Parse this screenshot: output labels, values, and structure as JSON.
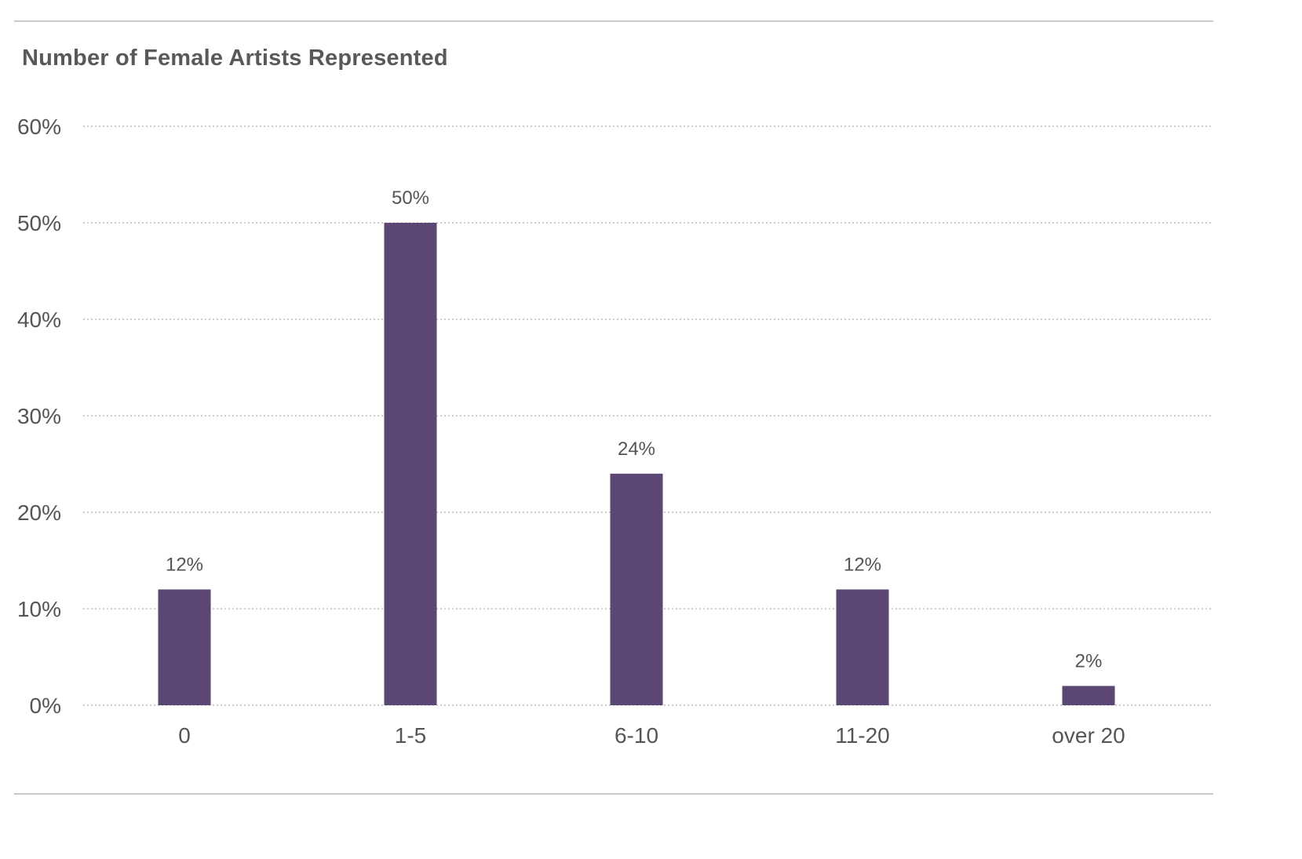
{
  "chart_data": {
    "type": "bar",
    "title": "Number of Female Artists Represented",
    "xlabel": "",
    "ylabel": "",
    "categories": [
      "0",
      "1-5",
      "6-10",
      "11-20",
      "over 20"
    ],
    "values": [
      12,
      50,
      24,
      12,
      2
    ],
    "value_labels": [
      "12%",
      "50%",
      "24%",
      "12%",
      "2%"
    ],
    "y_ticks": [
      0,
      10,
      20,
      30,
      40,
      50,
      60
    ],
    "y_tick_labels": [
      "0%",
      "10%",
      "20%",
      "30%",
      "40%",
      "50%",
      "60%"
    ],
    "ylim": [
      0,
      60
    ],
    "grid": true,
    "legend": "none",
    "bar_color": "#5b4674",
    "grid_color": "#bdbdbd"
  }
}
